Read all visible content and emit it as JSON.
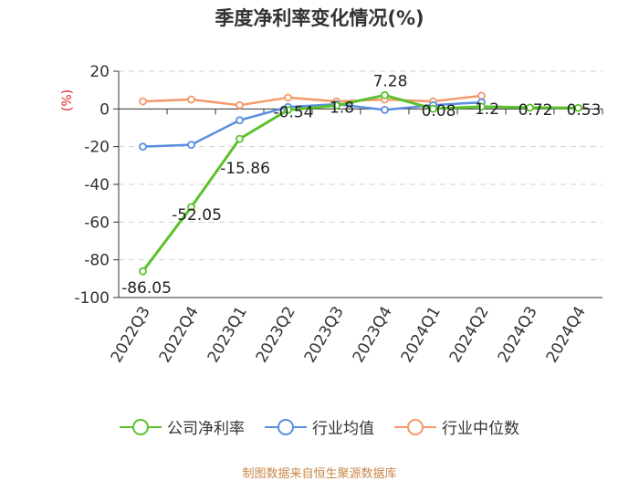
{
  "chart_data": {
    "type": "line",
    "title": "季度净利率变化情况(%)",
    "ylabel": "(%)",
    "xlabel": "",
    "categories": [
      "2022Q3",
      "2022Q4",
      "2023Q1",
      "2023Q2",
      "2023Q3",
      "2023Q4",
      "2024Q1",
      "2024Q2",
      "2024Q3",
      "2024Q4"
    ],
    "ylim": [
      -100,
      20
    ],
    "yticks": [
      20,
      0,
      -20,
      -40,
      -60,
      -80,
      -100
    ],
    "grid": "horizontal-dashed",
    "legend_position": "bottom",
    "series": [
      {
        "name": "公司净利率",
        "color": "#5bc22e",
        "values": [
          -86.05,
          -52.05,
          -15.86,
          -0.54,
          1.8,
          7.28,
          0.08,
          1.2,
          0.72,
          0.53
        ],
        "labels": [
          "-86.05",
          "-52.05",
          "-15.86",
          "-0.54",
          "1.8",
          "7.28",
          "0.08",
          "1.2",
          "0.72",
          "0.53"
        ]
      },
      {
        "name": "行业均值",
        "color": "#5b8ee0",
        "values": [
          -20,
          -19,
          -6,
          1,
          2.5,
          -0.5,
          2,
          3.5,
          null,
          null
        ]
      },
      {
        "name": "行业中位数",
        "color": "#f4996a",
        "values": [
          4,
          5,
          2,
          6,
          4,
          5,
          4,
          7,
          null,
          null
        ]
      }
    ]
  },
  "source_text": "制图数据来自恒生聚源数据库"
}
